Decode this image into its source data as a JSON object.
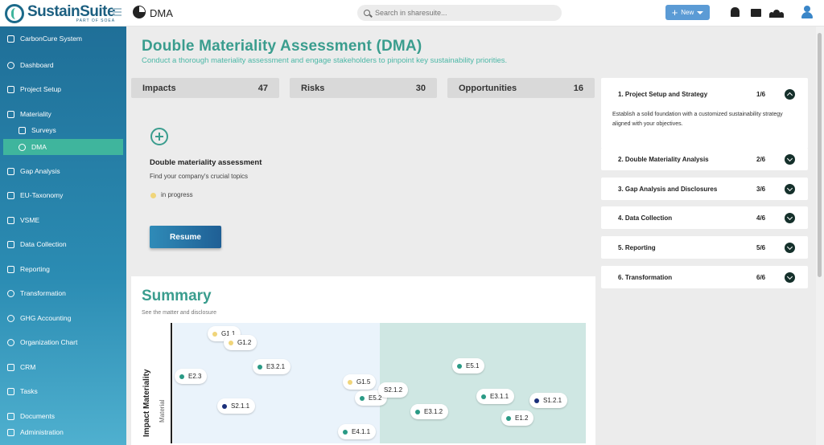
{
  "topbar": {
    "logo_name": "SustainSuite",
    "logo_sub": "PART OF SOEA",
    "page_name": "DMA",
    "search_placeholder": "Search in sharesuite...",
    "new_label": "New"
  },
  "sidebar": {
    "items": [
      {
        "label": "CarbonCure System",
        "icon": "grid-icon"
      },
      {
        "label": "Dashboard",
        "icon": "gauge-icon"
      },
      {
        "label": "Project Setup",
        "icon": "sitemap-icon"
      },
      {
        "label": "Materiality",
        "icon": "chart-line-icon"
      },
      {
        "label": "Surveys",
        "icon": "table-icon"
      },
      {
        "label": "DMA",
        "icon": "pie-icon"
      },
      {
        "label": "Gap Analysis",
        "icon": "database-icon"
      },
      {
        "label": "EU-Taxonomy",
        "icon": "database-icon"
      },
      {
        "label": "VSME",
        "icon": "database-icon"
      },
      {
        "label": "Data Collection",
        "icon": "database-icon"
      },
      {
        "label": "Reporting",
        "icon": "file-icon"
      },
      {
        "label": "Transformation",
        "icon": "sync-icon"
      },
      {
        "label": "GHG Accounting",
        "icon": "cloud-icon"
      },
      {
        "label": "Organization Chart",
        "icon": "sync-icon"
      },
      {
        "label": "CRM",
        "icon": "file-icon"
      },
      {
        "label": "Tasks",
        "icon": "list-icon"
      },
      {
        "label": "Documents",
        "icon": "folder-icon"
      },
      {
        "label": "Administration",
        "icon": "tools-icon"
      }
    ]
  },
  "main": {
    "title": "Double Materiality Assessment (DMA)",
    "subtitle": "Conduct a thorough materiality assessment and engage stakeholders to pinpoint key sustainability priorities.",
    "stats": [
      {
        "label": "Impacts",
        "value": "47"
      },
      {
        "label": "Risks",
        "value": "30"
      },
      {
        "label": "Opportunities",
        "value": "16"
      }
    ],
    "card": {
      "title": "Double materiality assessment",
      "subtitle": "Find your company's crucial topics",
      "status": "in progress",
      "resume_label": "Resume"
    },
    "steps": [
      {
        "label": "1. Project Setup and Strategy",
        "frac": "1/6",
        "expanded": true,
        "desc": "Establish a solid foundation with a customized sustainability strategy aligned with your objectives."
      },
      {
        "label": "2. Double Materiality Analysis",
        "frac": "2/6"
      },
      {
        "label": "3. Gap Analysis and Disclosures",
        "frac": "3/6"
      },
      {
        "label": "4. Data Collection",
        "frac": "4/6"
      },
      {
        "label": "5. Reporting",
        "frac": "5/6"
      },
      {
        "label": "6. Transformation",
        "frac": "6/6"
      }
    ],
    "summary": {
      "title": "Summary",
      "subtitle": "See the matter and disclosure",
      "ylabel": "Impact Materiality",
      "ylabel_sub": "Material",
      "points": [
        {
          "label": "G1.1",
          "color": "#f0d57a"
        },
        {
          "label": "G1.2",
          "color": "#f0d57a"
        },
        {
          "label": "E3.2.1",
          "color": "#2a9a85"
        },
        {
          "label": "E2.3",
          "color": "#2a9a85"
        },
        {
          "label": "G1.5",
          "color": "#f0d57a"
        },
        {
          "label": "E5.2",
          "color": "#2a9a85"
        },
        {
          "label": "S2.1.2",
          "color": "#2a9a85"
        },
        {
          "label": "S2.1.1",
          "color": "#1a2f7a"
        },
        {
          "label": "E4.1.1",
          "color": "#2a9a85"
        },
        {
          "label": "E5.1",
          "color": "#2a9a85"
        },
        {
          "label": "E3.1.1",
          "color": "#2a9a85"
        },
        {
          "label": "S1.2.1",
          "color": "#1a2f7a"
        },
        {
          "label": "E3.1.2",
          "color": "#2a9a85"
        },
        {
          "label": "E1.2",
          "color": "#2a9a85"
        }
      ]
    }
  }
}
